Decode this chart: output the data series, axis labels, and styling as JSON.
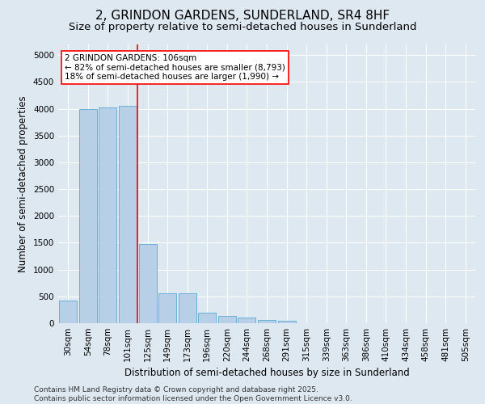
{
  "title": "2, GRINDON GARDENS, SUNDERLAND, SR4 8HF",
  "subtitle": "Size of property relative to semi-detached houses in Sunderland",
  "xlabel": "Distribution of semi-detached houses by size in Sunderland",
  "ylabel": "Number of semi-detached properties",
  "footnote1": "Contains HM Land Registry data © Crown copyright and database right 2025.",
  "footnote2": "Contains public sector information licensed under the Open Government Licence v3.0.",
  "categories": [
    "30sqm",
    "54sqm",
    "78sqm",
    "101sqm",
    "125sqm",
    "149sqm",
    "173sqm",
    "196sqm",
    "220sqm",
    "244sqm",
    "268sqm",
    "291sqm",
    "315sqm",
    "339sqm",
    "363sqm",
    "386sqm",
    "410sqm",
    "434sqm",
    "458sqm",
    "481sqm",
    "505sqm"
  ],
  "bar_values": [
    420,
    4000,
    4030,
    4060,
    1480,
    560,
    560,
    200,
    130,
    100,
    65,
    40,
    0,
    0,
    0,
    0,
    0,
    0,
    0,
    0,
    0
  ],
  "bar_color": "#b8cfe8",
  "bar_edgecolor": "#6baed6",
  "vline_x": 3.5,
  "vline_color": "red",
  "annotation_text": "2 GRINDON GARDENS: 106sqm\n← 82% of semi-detached houses are smaller (8,793)\n18% of semi-detached houses are larger (1,990) →",
  "ylim": [
    0,
    5200
  ],
  "yticks": [
    0,
    500,
    1000,
    1500,
    2000,
    2500,
    3000,
    3500,
    4000,
    4500,
    5000
  ],
  "bg_color": "#dde8f0",
  "plot_bg_color": "#dde8f0",
  "grid_color": "white",
  "title_fontsize": 11,
  "subtitle_fontsize": 9.5,
  "label_fontsize": 8.5,
  "tick_fontsize": 7.5,
  "annotation_fontsize": 7.5,
  "footnote_fontsize": 6.5
}
